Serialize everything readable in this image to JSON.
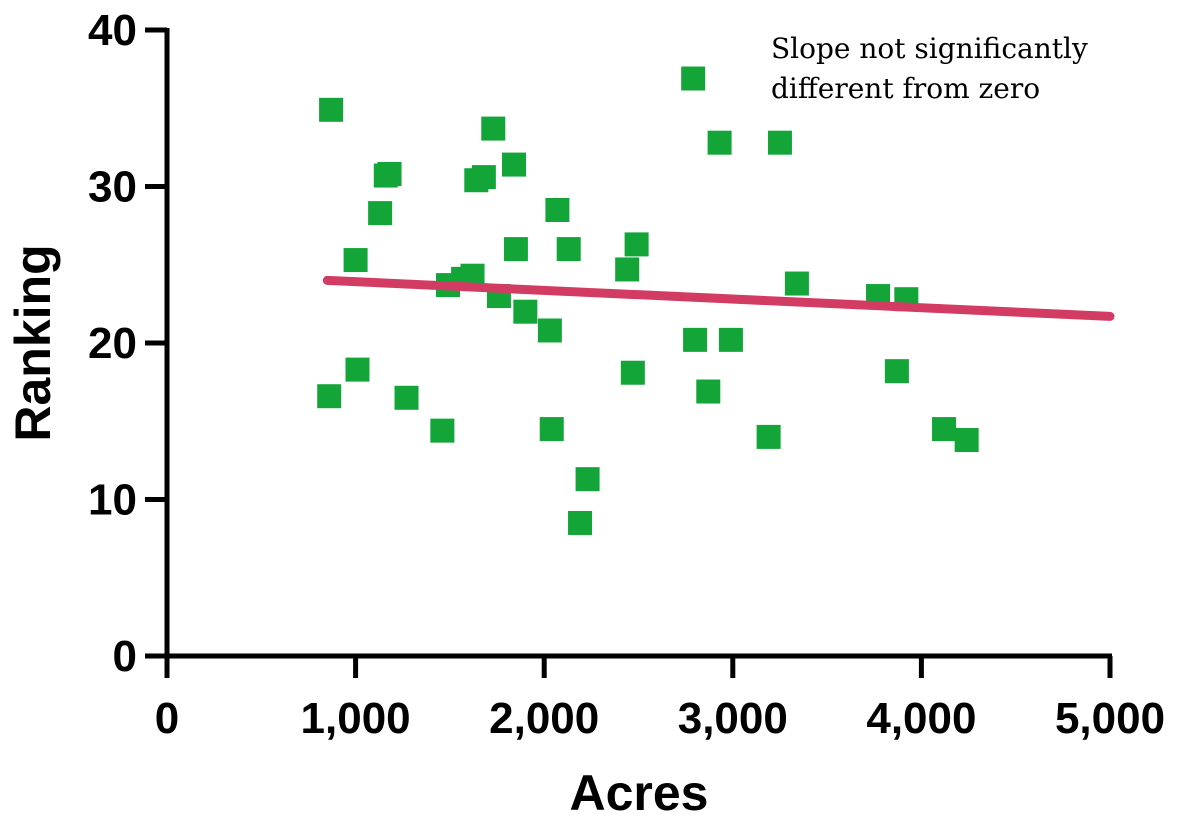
{
  "chart_data": {
    "type": "scatter",
    "title": "",
    "xlabel": "Acres",
    "ylabel": "Ranking",
    "xlim": [
      0,
      5000
    ],
    "ylim": [
      0,
      40
    ],
    "x_ticks": [
      0,
      1000,
      2000,
      3000,
      4000,
      5000
    ],
    "x_tick_labels": [
      "0",
      "1,000",
      "2,000",
      "3,000",
      "4,000",
      "5,000"
    ],
    "y_ticks": [
      0,
      10,
      20,
      30,
      40
    ],
    "y_tick_labels": [
      "0",
      "10",
      "20",
      "30",
      "40"
    ],
    "grid": false,
    "legend": "none",
    "annotation_lines": [
      "Slope not significantly",
      "different from zero"
    ],
    "series": [
      {
        "marker": "square",
        "color": "#13a538",
        "points": [
          [
            860,
            16.6
          ],
          [
            870,
            34.9
          ],
          [
            1000,
            25.3
          ],
          [
            1010,
            18.3
          ],
          [
            1130,
            28.3
          ],
          [
            1160,
            30.7
          ],
          [
            1180,
            30.8
          ],
          [
            1270,
            16.5
          ],
          [
            1460,
            14.4
          ],
          [
            1490,
            23.7
          ],
          [
            1570,
            24.1
          ],
          [
            1620,
            24.3
          ],
          [
            1640,
            30.4
          ],
          [
            1680,
            30.6
          ],
          [
            1730,
            33.7
          ],
          [
            1760,
            23.0
          ],
          [
            1840,
            31.4
          ],
          [
            1850,
            26.0
          ],
          [
            1900,
            22.0
          ],
          [
            2030,
            20.8
          ],
          [
            2040,
            14.5
          ],
          [
            2070,
            28.5
          ],
          [
            2130,
            26.0
          ],
          [
            2190,
            8.5
          ],
          [
            2230,
            11.3
          ],
          [
            2440,
            24.7
          ],
          [
            2470,
            18.1
          ],
          [
            2490,
            26.3
          ],
          [
            2790,
            36.9
          ],
          [
            2800,
            20.2
          ],
          [
            2870,
            16.9
          ],
          [
            2930,
            32.8
          ],
          [
            2990,
            20.2
          ],
          [
            3190,
            14.0
          ],
          [
            3250,
            32.8
          ],
          [
            3340,
            23.8
          ],
          [
            3770,
            23.0
          ],
          [
            3870,
            18.2
          ],
          [
            3920,
            22.8
          ],
          [
            4120,
            14.5
          ],
          [
            4240,
            13.8
          ]
        ]
      }
    ],
    "trendline": {
      "color": "#d23c63",
      "x": [
        850,
        5000
      ],
      "y": [
        24.0,
        21.7
      ]
    }
  }
}
